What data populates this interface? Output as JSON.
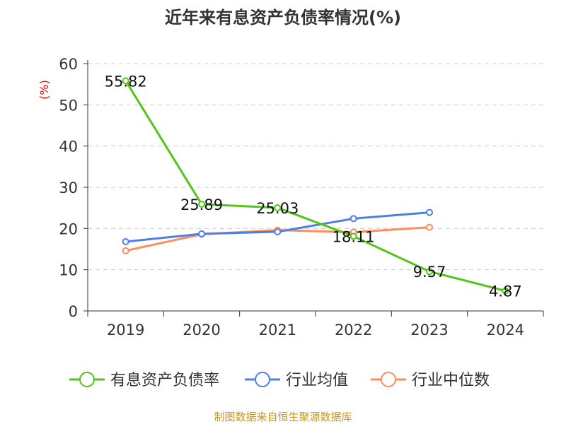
{
  "chart_data": {
    "type": "line",
    "title": "近年来有息资产负债率情况(%)",
    "ylabel": "(%)",
    "categories": [
      "2019",
      "2020",
      "2021",
      "2022",
      "2023",
      "2024"
    ],
    "ylim": [
      0,
      60
    ],
    "yticks": [
      0,
      10,
      20,
      30,
      40,
      50,
      60
    ],
    "grid": true,
    "legend_position": "bottom",
    "series": [
      {
        "name": "有息资产负债率",
        "color": "#52c41a",
        "values": [
          55.82,
          25.89,
          25.03,
          18.11,
          9.57,
          4.87
        ],
        "labels": [
          "55.82",
          "25.89",
          "25.03",
          "18.11",
          "9.57",
          "4.87"
        ]
      },
      {
        "name": "行业均值",
        "color": "#4e7fe6",
        "values": [
          16.8,
          18.7,
          19.2,
          22.4,
          23.9,
          null
        ]
      },
      {
        "name": "行业中位数",
        "color": "#ff8c5a",
        "values": [
          14.6,
          18.6,
          19.6,
          19.1,
          20.3,
          null
        ]
      }
    ],
    "source": "制图数据来自恒生聚源数据库"
  }
}
